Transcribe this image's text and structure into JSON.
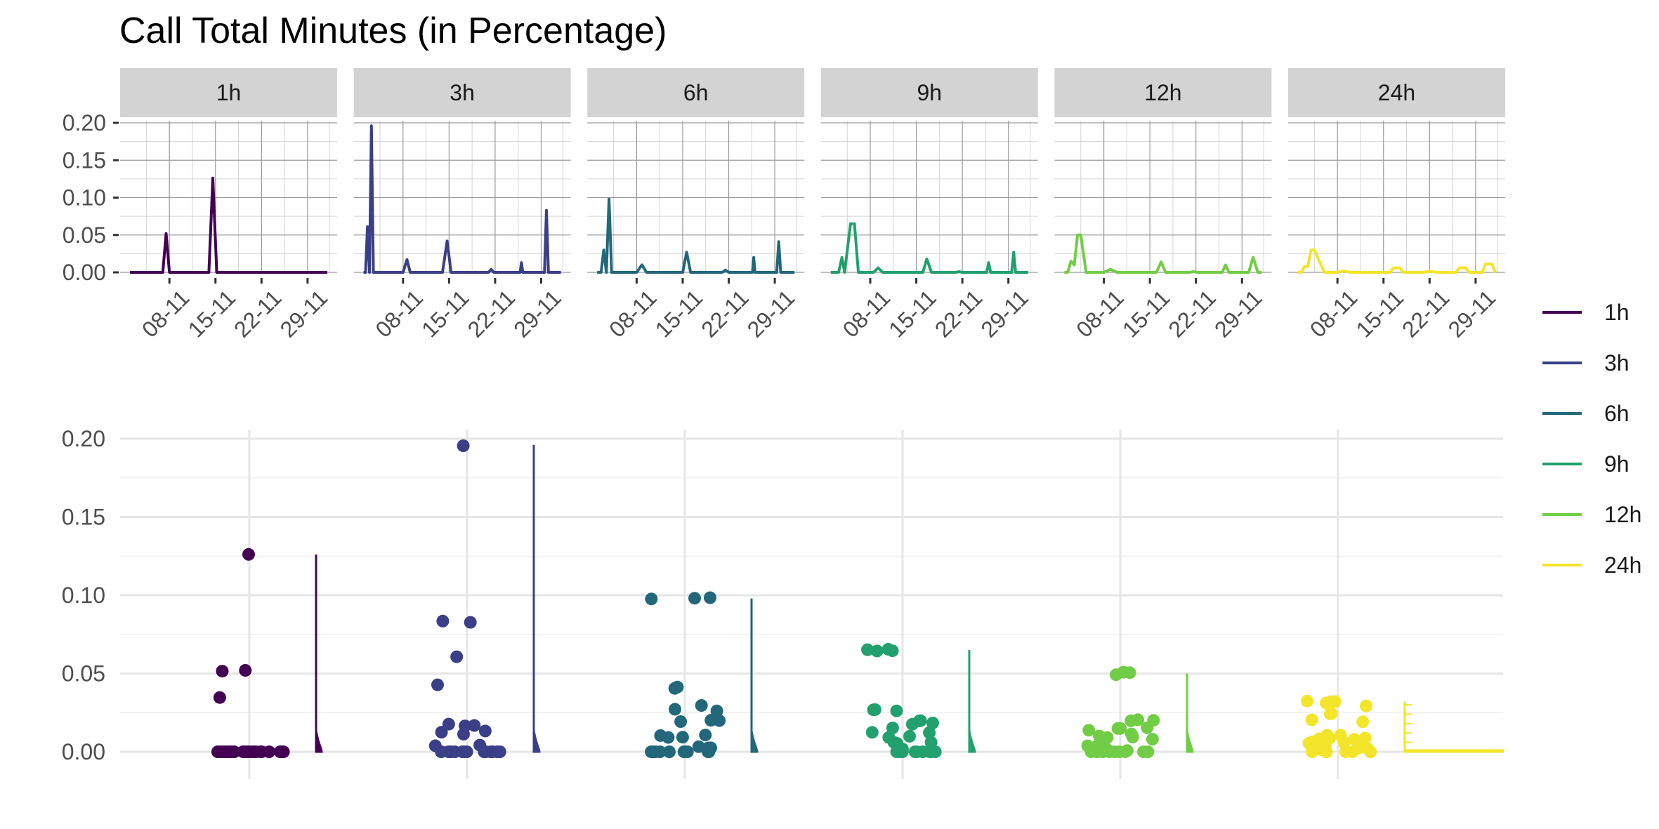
{
  "title": "Call Total Minutes (in Percentage)",
  "colors": {
    "1h": "#440154",
    "3h": "#3b3f87",
    "6h": "#23677a",
    "9h": "#23a06f",
    "12h": "#72cd46",
    "24h": "#f3e52a",
    "strip_bg": "#d3d3d3",
    "grid_major_top": "#9a9a9a",
    "grid_minor_top": "#d4d4d4",
    "grid_bottom": "#e6e6e6"
  },
  "chart_data": [
    {
      "type": "line",
      "title": "",
      "facets": [
        "1h",
        "3h",
        "6h",
        "9h",
        "12h",
        "24h"
      ],
      "x_ticks": [
        "08-11",
        "15-11",
        "22-11",
        "29-11"
      ],
      "x_range": [
        1,
        31
      ],
      "y_ticks": [
        "0.20",
        "0.15",
        "0.10",
        "0.05",
        "0.00"
      ],
      "ylim": [
        0,
        0.2
      ],
      "grid": true,
      "series": [
        {
          "name": "1h",
          "x": [
            1,
            6.0,
            6.5,
            7.0,
            13.0,
            13.6,
            14.2,
            31
          ],
          "y": [
            0,
            0,
            0.052,
            0,
            0,
            0.126,
            0,
            0
          ]
        },
        {
          "name": "3h",
          "x": [
            1,
            1.3,
            1.6,
            1.9,
            2.2,
            2.5,
            3.0,
            7.0,
            7.6,
            8.1,
            13.0,
            13.7,
            14.3,
            20.0,
            20.4,
            20.8,
            24.8,
            25.0,
            25.2,
            28.5,
            28.8,
            29.1,
            31
          ],
          "y": [
            0,
            0,
            0.061,
            0,
            0.196,
            0,
            0,
            0,
            0.017,
            0,
            0,
            0.042,
            0,
            0,
            0.004,
            0,
            0,
            0.013,
            0,
            0,
            0.083,
            0,
            0
          ]
        },
        {
          "name": "6h",
          "x": [
            1,
            1.6,
            2.0,
            2.4,
            2.8,
            3.2,
            7.0,
            7.8,
            8.5,
            14.0,
            14.6,
            15.2,
            20.0,
            20.5,
            21.0,
            24.6,
            24.8,
            25.0,
            28.3,
            28.6,
            28.9,
            31
          ],
          "y": [
            0,
            0,
            0.03,
            0,
            0.098,
            0,
            0,
            0.01,
            0,
            0,
            0.027,
            0,
            0,
            0.003,
            0,
            0,
            0.02,
            0,
            0,
            0.041,
            0,
            0
          ]
        },
        {
          "name": "9h",
          "x": [
            1,
            2.2,
            2.7,
            3.1,
            4.0,
            4.6,
            5.2,
            7.5,
            8.2,
            8.9,
            15.0,
            15.6,
            16.3,
            20.0,
            20.5,
            21.0,
            24.7,
            25.0,
            25.3,
            28.5,
            28.8,
            29.1,
            31
          ],
          "y": [
            0,
            0,
            0.02,
            0,
            0.065,
            0.065,
            0,
            0,
            0.006,
            0,
            0,
            0.018,
            0,
            0,
            0.001,
            0,
            0,
            0.013,
            0,
            0,
            0.027,
            0,
            0
          ]
        },
        {
          "name": "12h",
          "x": [
            1,
            1.5,
            2.0,
            2.5,
            3.0,
            3.5,
            4.3,
            7.0,
            8.0,
            9.0,
            15.0,
            15.7,
            16.4,
            20.0,
            20.6,
            21.2,
            25.0,
            25.5,
            26.0,
            29.0,
            29.7,
            30.4,
            31
          ],
          "y": [
            0,
            0,
            0.015,
            0.01,
            0.05,
            0.05,
            0,
            0,
            0.004,
            0,
            0,
            0.014,
            0,
            0,
            0.001,
            0,
            0,
            0.01,
            0,
            0,
            0.02,
            0,
            0
          ]
        },
        {
          "name": "24h",
          "x": [
            1,
            1.5,
            2.0,
            2.5,
            3.0,
            3.5,
            4.0,
            5.0,
            7.0,
            8.0,
            9.0,
            15.0,
            15.5,
            16.5,
            17.0,
            20.0,
            20.5,
            21.5,
            22.0,
            25.0,
            25.5,
            26.5,
            27.0,
            29.0,
            29.5,
            30.5,
            31
          ],
          "y": [
            0,
            0,
            0.008,
            0.008,
            0.03,
            0.03,
            0.02,
            0,
            0,
            0.002,
            0,
            0,
            0.006,
            0.006,
            0,
            0,
            0.001,
            0.001,
            0,
            0,
            0.006,
            0.006,
            0,
            0,
            0.011,
            0.011,
            0
          ]
        }
      ]
    },
    {
      "type": "scatter",
      "title": "",
      "categories": [
        "1h",
        "3h",
        "6h",
        "9h",
        "12h",
        "24h"
      ],
      "y_ticks": [
        "0.20",
        "0.15",
        "0.10",
        "0.05",
        "0.00"
      ],
      "ylim": [
        0,
        0.2
      ],
      "grid": true,
      "legend_position": "right",
      "series": [
        {
          "name": "1h",
          "values": [
            0.126,
            0.052,
            0.052,
            0.034,
            0,
            0,
            0,
            0,
            0,
            0,
            0,
            0,
            0,
            0,
            0,
            0,
            0,
            0,
            0,
            0,
            0,
            0,
            0,
            0,
            0,
            0,
            0,
            0,
            0,
            0
          ]
        },
        {
          "name": "3h",
          "values": [
            0.196,
            0.083,
            0.083,
            0.061,
            0.042,
            0.017,
            0.017,
            0.017,
            0.013,
            0.013,
            0.012,
            0.004,
            0.004,
            0,
            0,
            0,
            0,
            0,
            0,
            0,
            0,
            0,
            0,
            0,
            0,
            0,
            0,
            0,
            0,
            0
          ]
        },
        {
          "name": "6h",
          "values": [
            0.098,
            0.098,
            0.098,
            0.041,
            0.041,
            0.03,
            0.027,
            0.027,
            0.02,
            0.02,
            0.02,
            0.01,
            0.01,
            0.01,
            0.01,
            0.003,
            0.003,
            0.003,
            0,
            0,
            0,
            0,
            0,
            0,
            0,
            0,
            0,
            0,
            0,
            0
          ]
        },
        {
          "name": "9h",
          "values": [
            0.065,
            0.065,
            0.065,
            0.065,
            0.027,
            0.027,
            0.027,
            0.02,
            0.02,
            0.018,
            0.018,
            0.016,
            0.013,
            0.013,
            0.01,
            0.01,
            0.006,
            0.006,
            0.006,
            0.001,
            0.001,
            0,
            0,
            0,
            0,
            0,
            0,
            0,
            0,
            0
          ]
        },
        {
          "name": "12h",
          "values": [
            0.05,
            0.05,
            0.05,
            0.02,
            0.02,
            0.02,
            0.015,
            0.015,
            0.014,
            0.014,
            0.012,
            0.01,
            0.01,
            0.01,
            0.008,
            0.004,
            0.004,
            0.004,
            0.001,
            0.001,
            0,
            0,
            0,
            0,
            0,
            0,
            0,
            0,
            0,
            0
          ]
        },
        {
          "name": "24h",
          "values": [
            0.032,
            0.032,
            0.032,
            0.032,
            0.03,
            0.025,
            0.025,
            0.02,
            0.02,
            0.011,
            0.011,
            0.008,
            0.008,
            0.008,
            0.008,
            0.006,
            0.006,
            0.006,
            0.005,
            0.005,
            0.005,
            0.002,
            0.002,
            0.001,
            0,
            0,
            0,
            0,
            0,
            0
          ]
        }
      ]
    }
  ]
}
